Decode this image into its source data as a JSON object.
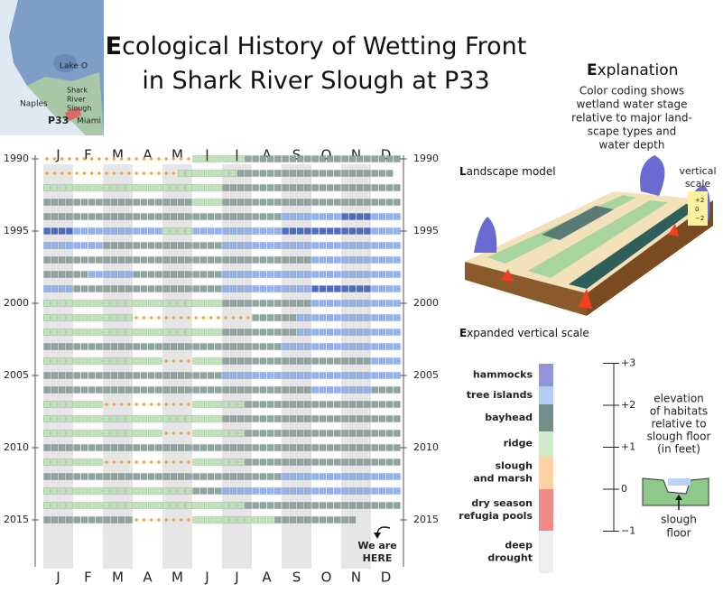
{
  "map": {
    "lake": "Lake O",
    "naples": "Naples",
    "slough": [
      "Shark",
      "River",
      "Slough"
    ],
    "station": "P33",
    "city": "Miami"
  },
  "title": [
    "Ecological History of Wetting Front",
    "in Shark River Slough at P33"
  ],
  "explanation": {
    "heading": "Explanation",
    "lines": [
      "Color coding shows",
      "wetland water stage",
      "relative to major land-",
      "scape types and",
      "water depth"
    ]
  },
  "chart_data": {
    "type": "heatmap",
    "categories": [
      "J",
      "F",
      "M",
      "A",
      "M",
      "J",
      "J",
      "A",
      "S",
      "O",
      "N",
      "D"
    ],
    "yticks": [
      1990,
      1995,
      2000,
      2005,
      2010,
      2015
    ],
    "classes": {
      "o": "#f5a444",
      "g": "#bfe3b8",
      "s": "#8fa6a0",
      "b": "#93b4f2",
      "n": "#4a6cc8"
    },
    "rows": [
      "oooooooooooooooooooogggggggsssssssssssssssssssss",
      "ooooooooooooooooooggggggggsssssssssssssssssssss",
      "ggggggggggggggggggggggggssssssssssssssssssssssss",
      "ssssssssssssssssssssggggssssssssssssssssssssssss",
      "ssssssssssssssssssssssssssssssssbbbbbbbbnnnnbbbb",
      "nnnnbbbbbbbbbbbbggggbbbbbbbbbbbbnnnnnnnnnnnnbbbb",
      "bbbbbbbbssssssssssssssssbbbbbbbbbbbbbbbbbbbbbbbb",
      "ssssssssssssssssssssssssssssssssssssbbbbbbbbbbbb",
      "ssssssbbbbbbssssssssssssbbbbbbbbbbbbbbbbbbbbbbbb",
      "bbbbssssssssssssssssssssbbbbbbbbbbbbnnnnnnnnbbbb",
      "ggggggggggggggggggggggggssssssssssssbbbbbbbbbbbb",
      "ggggggggggggoooooooooooooooossssssbbbbbbbbbbbbbb",
      "ggggggggggggggggggggggggssssssssssbbbbbbbbbbbbbb",
      "ssssssssssssssssssssssssssssssssbbbbbbbbbbbbbbbb",
      "ggggggggggggggggooooggggssssssssssssssssssssbbbb",
      "ssssssssssssssssssssssssbbbbbbbbbbbbbbbbbbbbbbbb",
      "ssssssssssssssssssssssssssssssssssssbbbbbbbbssss",
      "ggggggggoooooooooooogggggggsssssssssssssssssssss",
      "ggggggggggggggggggggggggssssssssssssssssssssssss",
      "ggggggggggggggggoooogggggggsssssssssssssssssssss",
      "ssssssssssssssssssssssssssssssssssssssssssssssss",
      "ggggggggoooooooooooogggggggsssssssssssssssssssss",
      "ssssssssssssssssssssssssssssssssbbbbbbbbbbbbbbbb",
      "ggggggggggggggggggggssssbbbbbbbbbbbbbbbbbbbbbbbb",
      "gggggggggggggggggggggggggggsssssssssssssssssssss",
      "ssssssssssssoooooooogggggggggggsssssssssss"
    ],
    "annotation": [
      "We are",
      "HERE"
    ]
  },
  "landscape": {
    "title": "Landscape model",
    "scale_title": [
      "vertical",
      "scale"
    ],
    "scale_ticks": [
      "+2",
      "0",
      "−2"
    ]
  },
  "vertical_scale": {
    "title": "Expanded vertical scale",
    "habitats": [
      {
        "name": [
          "hammocks"
        ],
        "color": "#6b6bd0",
        "swatch": "#9494d8"
      },
      {
        "name": [
          "tree islands"
        ],
        "color": "#6aa2e4",
        "swatch": "#b4ccf2"
      },
      {
        "name": [
          "bayhead"
        ],
        "color": "#4f6866",
        "swatch": "#748c8a"
      },
      {
        "name": [
          "ridge"
        ],
        "color": "#8cc48c",
        "swatch": "#cfe9cb"
      },
      {
        "name": [
          "slough",
          "and marsh"
        ],
        "color": "#f08a24",
        "swatch": "#fcd3a2"
      },
      {
        "name": [
          "dry season",
          "refugia pools"
        ],
        "color": "#e01818",
        "swatch": "#f38a8a"
      },
      {
        "name": [
          "deep",
          "drought"
        ],
        "color": "#222222",
        "swatch": "#eeeeee"
      }
    ],
    "ticks": [
      {
        "value": 3,
        "label": "+3"
      },
      {
        "value": 2,
        "label": "+2"
      },
      {
        "value": 1,
        "label": "+1"
      },
      0,
      {
        "value": -1,
        "label": "−1"
      }
    ],
    "note": [
      "elevation",
      "of habitats",
      "relative to",
      "slough floor",
      "(in feet)"
    ],
    "floor": [
      "slough",
      "floor"
    ]
  }
}
